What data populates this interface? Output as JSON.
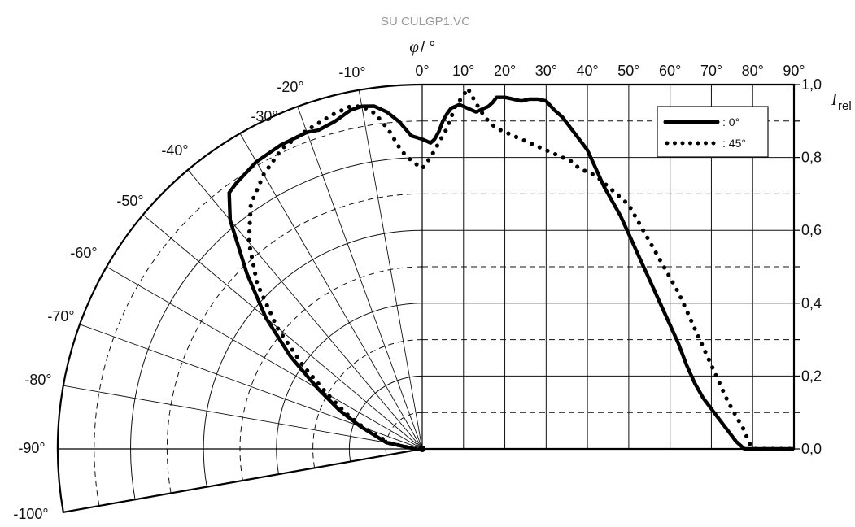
{
  "chart_data": {
    "type": "line",
    "title": "SU CULGP1.VC",
    "x_label": {
      "symbol": "φ",
      "unit": "/ °"
    },
    "y_label": {
      "symbol": "I",
      "subscript": "rel"
    },
    "angle_ticks": [
      "0°",
      "10°",
      "20°",
      "30°",
      "40°",
      "50°",
      "60°",
      "70°",
      "80°",
      "90°",
      "-10°",
      "-20°",
      "-30°",
      "-40°",
      "-50°",
      "-60°",
      "-70°",
      "-80°",
      "-90°",
      "-100°"
    ],
    "y_ticks": [
      "1,0",
      "0,8",
      "0,6",
      "0,4",
      "0,2",
      "0,0"
    ],
    "ylim": [
      0,
      1.0
    ],
    "xlim": [
      -100,
      90
    ],
    "grid": true,
    "legend_position": "top-right",
    "series": [
      {
        "name": ": 0°",
        "style": "solid",
        "points": [
          [
            -90,
            0.02
          ],
          [
            -80,
            0.1
          ],
          [
            -70,
            0.18
          ],
          [
            -65,
            0.25
          ],
          [
            -60,
            0.33
          ],
          [
            -55,
            0.44
          ],
          [
            -50,
            0.56
          ],
          [
            -45,
            0.68
          ],
          [
            -40,
            0.82
          ],
          [
            -37,
            0.88
          ],
          [
            -35,
            0.89
          ],
          [
            -30,
            0.91
          ],
          [
            -25,
            0.92
          ],
          [
            -20,
            0.925
          ],
          [
            -18,
            0.92
          ],
          [
            -15,
            0.93
          ],
          [
            -12,
            0.95
          ],
          [
            -10,
            0.955
          ],
          [
            -8,
            0.95
          ],
          [
            -6,
            0.93
          ],
          [
            -4,
            0.9
          ],
          [
            -2,
            0.86
          ],
          [
            0,
            0.85
          ],
          [
            1,
            0.845
          ],
          [
            2,
            0.84
          ],
          [
            3,
            0.85
          ],
          [
            4,
            0.87
          ],
          [
            5,
            0.9
          ],
          [
            6,
            0.92
          ],
          [
            7,
            0.935
          ],
          [
            8,
            0.94
          ],
          [
            9,
            0.945
          ],
          [
            10,
            0.94
          ],
          [
            11,
            0.935
          ],
          [
            12,
            0.93
          ],
          [
            13,
            0.925
          ],
          [
            14,
            0.93
          ],
          [
            15,
            0.935
          ],
          [
            16,
            0.94
          ],
          [
            17,
            0.95
          ],
          [
            18,
            0.965
          ],
          [
            20,
            0.965
          ],
          [
            22,
            0.96
          ],
          [
            24,
            0.955
          ],
          [
            26,
            0.96
          ],
          [
            28,
            0.96
          ],
          [
            30,
            0.955
          ],
          [
            32,
            0.93
          ],
          [
            34,
            0.91
          ],
          [
            36,
            0.88
          ],
          [
            38,
            0.85
          ],
          [
            40,
            0.82
          ],
          [
            42,
            0.77
          ],
          [
            44,
            0.72
          ],
          [
            46,
            0.68
          ],
          [
            48,
            0.64
          ],
          [
            50,
            0.59
          ],
          [
            52,
            0.54
          ],
          [
            54,
            0.49
          ],
          [
            56,
            0.44
          ],
          [
            58,
            0.39
          ],
          [
            60,
            0.34
          ],
          [
            62,
            0.29
          ],
          [
            64,
            0.23
          ],
          [
            66,
            0.18
          ],
          [
            68,
            0.14
          ],
          [
            70,
            0.11
          ],
          [
            72,
            0.08
          ],
          [
            74,
            0.05
          ],
          [
            76,
            0.02
          ],
          [
            78,
            0.0
          ],
          [
            80,
            0.0
          ],
          [
            85,
            0.0
          ],
          [
            88,
            0.0
          ],
          [
            90,
            0.0
          ]
        ]
      },
      {
        "name": ": 45°",
        "style": "dotted",
        "points": [
          [
            -90,
            0.02
          ],
          [
            -80,
            0.09
          ],
          [
            -70,
            0.17
          ],
          [
            -65,
            0.23
          ],
          [
            -60,
            0.3
          ],
          [
            -55,
            0.4
          ],
          [
            -50,
            0.52
          ],
          [
            -45,
            0.64
          ],
          [
            -40,
            0.74
          ],
          [
            -35,
            0.82
          ],
          [
            -30,
            0.87
          ],
          [
            -25,
            0.91
          ],
          [
            -20,
            0.93
          ],
          [
            -15,
            0.95
          ],
          [
            -12,
            0.96
          ],
          [
            -10,
            0.955
          ],
          [
            -8,
            0.93
          ],
          [
            -6,
            0.88
          ],
          [
            -4,
            0.82
          ],
          [
            -2,
            0.79
          ],
          [
            0,
            0.77
          ],
          [
            2,
            0.8
          ],
          [
            4,
            0.84
          ],
          [
            6,
            0.88
          ],
          [
            8,
            0.94
          ],
          [
            10,
            0.97
          ],
          [
            11,
            0.99
          ],
          [
            12,
            0.97
          ],
          [
            14,
            0.93
          ],
          [
            16,
            0.9
          ],
          [
            18,
            0.88
          ],
          [
            20,
            0.87
          ],
          [
            22,
            0.86
          ],
          [
            24,
            0.85
          ],
          [
            26,
            0.84
          ],
          [
            28,
            0.83
          ],
          [
            30,
            0.82
          ],
          [
            32,
            0.81
          ],
          [
            34,
            0.8
          ],
          [
            36,
            0.79
          ],
          [
            38,
            0.77
          ],
          [
            40,
            0.76
          ],
          [
            42,
            0.75
          ],
          [
            44,
            0.73
          ],
          [
            46,
            0.71
          ],
          [
            48,
            0.69
          ],
          [
            50,
            0.67
          ],
          [
            52,
            0.63
          ],
          [
            54,
            0.59
          ],
          [
            56,
            0.55
          ],
          [
            58,
            0.51
          ],
          [
            60,
            0.47
          ],
          [
            62,
            0.43
          ],
          [
            64,
            0.38
          ],
          [
            66,
            0.33
          ],
          [
            68,
            0.28
          ],
          [
            70,
            0.23
          ],
          [
            72,
            0.18
          ],
          [
            74,
            0.13
          ],
          [
            76,
            0.09
          ],
          [
            78,
            0.05
          ],
          [
            79,
            0.02
          ],
          [
            80,
            0.0
          ],
          [
            82,
            0.0
          ],
          [
            85,
            0.0
          ],
          [
            88,
            0.0
          ],
          [
            90,
            0.0
          ]
        ]
      }
    ],
    "legend": [
      {
        "label": ": 0°",
        "style": "solid"
      },
      {
        "label": ": 45°",
        "style": "dotted"
      }
    ]
  }
}
